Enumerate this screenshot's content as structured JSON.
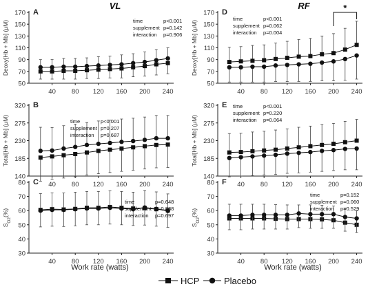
{
  "chart_data": [
    {
      "panel": "A",
      "column_title": "VL",
      "type": "line",
      "ylabel": "Deoxy[Hb + Mb] (μM)",
      "ylim": [
        50,
        170
      ],
      "yticks": [
        "50",
        "70",
        "90",
        "110",
        "130",
        "150",
        "170"
      ],
      "x": [
        20,
        40,
        60,
        80,
        100,
        120,
        140,
        160,
        180,
        200,
        220,
        240
      ],
      "xticks": [
        "40",
        "80",
        "120",
        "160",
        "200",
        "240"
      ],
      "series": [
        {
          "name": "HCP",
          "marker": "square",
          "values": [
            70,
            70,
            71,
            71,
            72,
            73,
            74,
            75,
            77,
            79,
            82,
            84
          ],
          "err": [
            13,
            13,
            14,
            14,
            14,
            15,
            15,
            16,
            16,
            17,
            18,
            18
          ]
        },
        {
          "name": "Placebo",
          "marker": "circle",
          "values": [
            77,
            77,
            78,
            78,
            79,
            80,
            81,
            82,
            84,
            86,
            89,
            92
          ],
          "err": [
            13,
            13,
            14,
            14,
            14,
            15,
            15,
            16,
            16,
            17,
            18,
            18
          ]
        }
      ],
      "stats": [
        [
          "time",
          "p<0.001"
        ],
        [
          "supplement",
          "p=0.142"
        ],
        [
          "interaction",
          "p=0.906"
        ]
      ],
      "bracket": null
    },
    {
      "panel": "B",
      "column_title": "",
      "type": "line",
      "ylabel": "Total[Hb + Mb] (μM)",
      "ylim": [
        140,
        320
      ],
      "yticks": [
        "140",
        "185",
        "230",
        "275",
        "320"
      ],
      "x": [
        20,
        40,
        60,
        80,
        100,
        120,
        140,
        160,
        180,
        200,
        220,
        240
      ],
      "xticks": [
        "40",
        "80",
        "120",
        "160",
        "200",
        "240"
      ],
      "series": [
        {
          "name": "HCP",
          "marker": "square",
          "values": [
            187,
            190,
            193,
            196,
            200,
            204,
            207,
            210,
            213,
            216,
            219,
            220
          ],
          "err": [
            60,
            58,
            58,
            58,
            57,
            58,
            58,
            58,
            58,
            58,
            58,
            58
          ]
        },
        {
          "name": "Placebo",
          "marker": "circle",
          "values": [
            204,
            205,
            210,
            214,
            219,
            222,
            224,
            227,
            229,
            232,
            236,
            236
          ],
          "err": [
            60,
            58,
            58,
            58,
            57,
            58,
            58,
            58,
            58,
            58,
            58,
            58
          ]
        }
      ],
      "stats": [
        [
          "time",
          "p<0.001"
        ],
        [
          "supplement",
          "p=0.207"
        ],
        [
          "interaction",
          "p=0.687"
        ]
      ],
      "bracket": null
    },
    {
      "panel": "C",
      "column_title": "",
      "type": "line",
      "ylabel": "SₐO₂(%)",
      "ylabel_main": "S",
      "ylabel_sub": "O2",
      "ylabel_tail": "(%)",
      "ylim": [
        30,
        80
      ],
      "yticks": [
        "30",
        "40",
        "50",
        "60",
        "70",
        "80"
      ],
      "x": [
        20,
        40,
        60,
        80,
        100,
        120,
        140,
        160,
        180,
        200,
        220,
        240
      ],
      "xticks": [
        "40",
        "80",
        "120",
        "160",
        "200",
        "240"
      ],
      "series": [
        {
          "name": "HCP",
          "marker": "square",
          "values": [
            60.5,
            61,
            60.8,
            61.2,
            62,
            62,
            62.5,
            62,
            61.5,
            61.8,
            61,
            60.2
          ],
          "err": [
            12,
            12,
            12,
            12,
            12,
            12,
            12,
            12,
            12,
            12,
            12,
            12
          ]
        },
        {
          "name": "Placebo",
          "marker": "circle",
          "values": [
            60,
            60.5,
            60.5,
            61,
            61.5,
            61.5,
            62,
            61.5,
            61,
            62.2,
            61.2,
            59.8
          ],
          "err": [
            12,
            12,
            12,
            12,
            12,
            12,
            12,
            12,
            12,
            12,
            12,
            12
          ]
        }
      ],
      "stats": [
        [
          "time",
          "p=0.648"
        ],
        [
          "supplement",
          "p=0.888"
        ],
        [
          "interaction",
          "p=0.697"
        ]
      ],
      "bracket": null
    },
    {
      "panel": "D",
      "column_title": "RF",
      "type": "line",
      "ylabel": "Deoxy[Hb + Mb] (μM)",
      "ylim": [
        50,
        170
      ],
      "yticks": [
        "50",
        "70",
        "90",
        "110",
        "130",
        "150",
        "170"
      ],
      "x": [
        20,
        40,
        60,
        80,
        100,
        120,
        140,
        160,
        180,
        200,
        220,
        240
      ],
      "xticks": [
        "40",
        "80",
        "120",
        "160",
        "200",
        "240"
      ],
      "series": [
        {
          "name": "HCP",
          "marker": "square",
          "values": [
            86,
            87,
            88,
            89,
            91,
            93,
            95,
            96,
            99,
            101,
            107,
            115
          ],
          "err": [
            25,
            25,
            26,
            26,
            27,
            28,
            29,
            30,
            31,
            33,
            36,
            40
          ]
        },
        {
          "name": "Placebo",
          "marker": "circle",
          "values": [
            77,
            77,
            78,
            78,
            80,
            81,
            82,
            83,
            85,
            87,
            91,
            97
          ],
          "err": [
            25,
            25,
            26,
            26,
            27,
            28,
            29,
            30,
            31,
            33,
            36,
            40
          ]
        }
      ],
      "stats": [
        [
          "time",
          "p<0.001"
        ],
        [
          "supplement",
          "p=0.062"
        ],
        [
          "interaction",
          "p=0.004"
        ]
      ],
      "bracket": {
        "from": 200,
        "to": 240,
        "label": "*"
      }
    },
    {
      "panel": "E",
      "column_title": "",
      "type": "line",
      "ylabel": "Total[Hb + Mb] (μM)",
      "ylim": [
        140,
        320
      ],
      "yticks": [
        "140",
        "185",
        "230",
        "275",
        "320"
      ],
      "x": [
        20,
        40,
        60,
        80,
        100,
        120,
        140,
        160,
        180,
        200,
        220,
        240
      ],
      "xticks": [
        "40",
        "80",
        "120",
        "160",
        "200",
        "240"
      ],
      "series": [
        {
          "name": "HCP",
          "marker": "square",
          "values": [
            200,
            201,
            203,
            205,
            207,
            210,
            213,
            216,
            219,
            222,
            226,
            230
          ],
          "err": [
            48,
            48,
            49,
            49,
            50,
            50,
            51,
            51,
            52,
            52,
            53,
            54
          ]
        },
        {
          "name": "Placebo",
          "marker": "circle",
          "values": [
            186,
            188,
            190,
            192,
            194,
            197,
            199,
            201,
            204,
            206,
            209,
            210
          ],
          "err": [
            48,
            48,
            49,
            49,
            50,
            50,
            51,
            51,
            52,
            52,
            53,
            54
          ]
        }
      ],
      "stats": [
        [
          "time",
          "p<0.001"
        ],
        [
          "supplement",
          "p=0.220"
        ],
        [
          "interaction",
          "p=0.064"
        ]
      ],
      "bracket": null
    },
    {
      "panel": "F",
      "column_title": "",
      "type": "line",
      "ylabel": "SₐO₂(%)",
      "ylabel_main": "S",
      "ylabel_sub": "O2",
      "ylabel_tail": "(%)",
      "ylim": [
        30,
        80
      ],
      "yticks": [
        "30",
        "40",
        "50",
        "60",
        "70",
        "80"
      ],
      "x": [
        20,
        40,
        60,
        80,
        100,
        120,
        140,
        160,
        180,
        200,
        220,
        240
      ],
      "xticks": [
        "40",
        "80",
        "120",
        "160",
        "200",
        "240"
      ],
      "series": [
        {
          "name": "HCP",
          "marker": "square",
          "values": [
            54.5,
            54.5,
            54.5,
            54.5,
            54.2,
            54,
            54,
            54,
            53.8,
            53.2,
            51.5,
            50
          ],
          "err": [
            10,
            10,
            10,
            10,
            10,
            10,
            10,
            10,
            10,
            10,
            10,
            10
          ]
        },
        {
          "name": "Placebo",
          "marker": "circle",
          "values": [
            56.5,
            56.5,
            57,
            57,
            57,
            57,
            58,
            57.5,
            57.5,
            57.5,
            55.5,
            54.5
          ],
          "err": [
            10,
            10,
            10,
            10,
            10,
            10,
            10,
            10,
            10,
            10,
            10,
            10
          ]
        }
      ],
      "stats": [
        [
          "time",
          "p=0.152"
        ],
        [
          "supplement",
          "p=0.060"
        ],
        [
          "interaction",
          "p=0.529"
        ]
      ],
      "bracket": null
    }
  ],
  "xlabel": "Work rate (watts)",
  "legend": {
    "placement": "bottom-center",
    "items": [
      "HCP",
      "Placebo"
    ]
  }
}
